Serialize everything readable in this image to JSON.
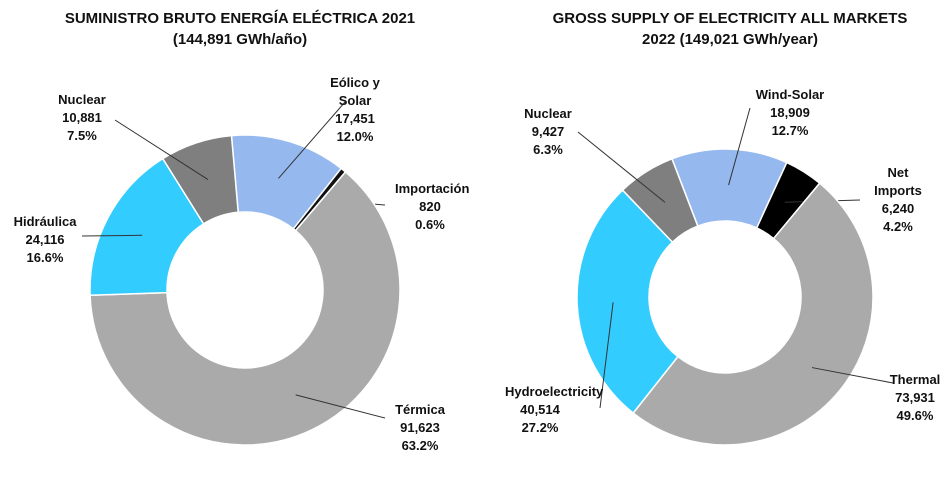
{
  "chart_data": [
    {
      "type": "donut",
      "title": "SUMINISTRO BRUTO ENERGÍA ELÉCTRICA 2021",
      "subtitle": "(144,891 GWh/año)",
      "categories": [
        "Eólico y Solar",
        "Importación",
        "Térmica",
        "Hidráulica",
        "Nuclear"
      ],
      "values": [
        17451,
        820,
        91623,
        24116,
        10881
      ],
      "value_labels": [
        "17,451",
        "820",
        "91,623",
        "24,116",
        "10,881"
      ],
      "shares": [
        12.0,
        0.6,
        63.2,
        16.6,
        7.5
      ],
      "share_labels": [
        "12.0%",
        "0.6%",
        "63.2%",
        "16.6%",
        "7.5%"
      ],
      "colors": [
        "#95b9ef",
        "#111111",
        "#aaaaaa",
        "#33ccff",
        "#7f7f7f"
      ]
    },
    {
      "type": "donut",
      "title": "GROSS SUPPLY OF ELECTRICITY ALL MARKETS",
      "subtitle": "2022 (149,021 GWh/year)",
      "categories": [
        "Wind-Solar",
        "Net Imports",
        "Thermal",
        "Hydroelectricity",
        "Nuclear"
      ],
      "values": [
        18909,
        6240,
        73931,
        40514,
        9427
      ],
      "value_labels": [
        "18,909",
        "6,240",
        "73,931",
        "40,514",
        "9,427"
      ],
      "shares": [
        12.7,
        4.2,
        49.6,
        27.2,
        6.3
      ],
      "share_labels": [
        "12.7%",
        "4.2%",
        "49.6%",
        "27.2%",
        "6.3%"
      ],
      "colors": [
        "#95b9ef",
        "#000000",
        "#aaaaaa",
        "#33ccff",
        "#7f7f7f"
      ]
    }
  ]
}
